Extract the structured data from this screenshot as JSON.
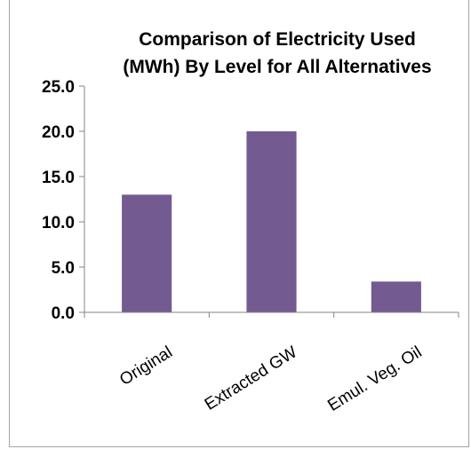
{
  "chart_data": {
    "type": "bar",
    "title_lines": [
      "Comparison of Electricity Used",
      "(MWh) By Level for All Alternatives"
    ],
    "categories": [
      "Original",
      "Extracted GW",
      "Emul. Veg. Oil"
    ],
    "values": [
      13.0,
      20.0,
      3.4
    ],
    "y_ticks": [
      "0.0",
      "5.0",
      "10.0",
      "15.0",
      "20.0",
      "25.0"
    ],
    "ylim": [
      0,
      25
    ],
    "xlabel": "",
    "ylabel": "",
    "grid": false,
    "legend": "none",
    "bar_color": "#735a91"
  }
}
